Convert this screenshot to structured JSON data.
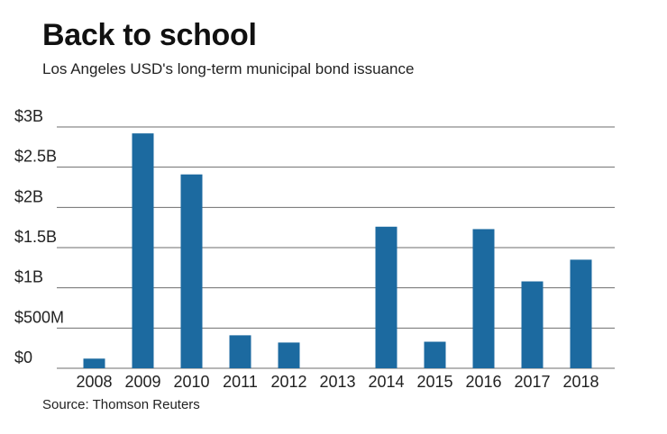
{
  "title": "Back to school",
  "subtitle": "Los Angeles USD's long-term municipal bond issuance",
  "source": "Source: Thomson Reuters",
  "colors": {
    "bar": "#1c6aa0",
    "grid": "#6e6e6e",
    "text": "#222222"
  },
  "chart_data": {
    "type": "bar",
    "categories": [
      "2008",
      "2009",
      "2010",
      "2011",
      "2012",
      "2013",
      "2014",
      "2015",
      "2016",
      "2017",
      "2018"
    ],
    "values": [
      0.12,
      2.92,
      2.41,
      0.41,
      0.32,
      0,
      1.76,
      0.33,
      1.73,
      1.08,
      1.35
    ],
    "y_unit": "billion USD",
    "yticks": [
      {
        "value": 0,
        "label": "$0"
      },
      {
        "value": 0.5,
        "label": "$500M"
      },
      {
        "value": 1,
        "label": "$1B"
      },
      {
        "value": 1.5,
        "label": "$1.5B"
      },
      {
        "value": 2,
        "label": "$2B"
      },
      {
        "value": 2.5,
        "label": "$2.5B"
      },
      {
        "value": 3,
        "label": "$3B"
      }
    ],
    "ylim": [
      0,
      3
    ],
    "grid": true,
    "xlabel": "",
    "ylabel": ""
  }
}
